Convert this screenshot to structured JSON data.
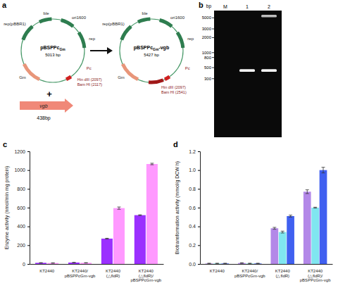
{
  "plasmid_panel": {
    "letter": "a",
    "plasmids": [
      {
        "name": "pBSPPc",
        "sub": "Gm",
        "suffix": "",
        "size": "5013 bp",
        "labels": [
          "ble",
          "ori1600",
          "rep",
          "rep(pBBR1)",
          "Gm",
          "Pc",
          "Hin dIII (2097)",
          "Bam HI (2117)"
        ]
      },
      {
        "name": "pBSPPc",
        "sub": "Gm",
        "suffix": "-vgb",
        "size": "5427 bp",
        "labels": [
          "ble",
          "ori1600",
          "rep",
          "rep(pBBR1)",
          "Gm",
          "Pc",
          "Hin dIII (2097)",
          "Bam HI (2541)"
        ]
      }
    ],
    "plus": "+",
    "insert": {
      "name": "vgb",
      "size": "438bp"
    }
  },
  "gel_panel": {
    "letter": "b",
    "unit": "bp",
    "lanes": [
      "M",
      "1",
      "2"
    ],
    "ladder": [
      5000,
      3000,
      2000,
      1000,
      800,
      500,
      300
    ],
    "ylim": [
      20,
      7000
    ],
    "bands": [
      [],
      [
        438
      ],
      [
        438,
        5427
      ]
    ]
  },
  "chart_data": [
    {
      "type": "bar",
      "letter": "c",
      "y_label": "Enzyme activity (nmol/min mg protein)",
      "categories": [
        "KT2440",
        "KT2440/pBSPPcGm-vgb",
        "KT2440(△fldR)",
        "KT2440(△fldR)/pBSPPcGm-vgb"
      ],
      "series": [
        {
          "color": "#9b30ff",
          "values": [
            12,
            15,
            270,
            520
          ],
          "errors": [
            2,
            2,
            4,
            4
          ]
        },
        {
          "color": "#ff99ff",
          "values": [
            10,
            12,
            595,
            1065
          ],
          "errors": [
            2,
            2,
            12,
            8
          ]
        }
      ],
      "ylim": [
        0,
        1200
      ],
      "yticks": [
        0,
        200,
        400,
        600,
        800,
        1000,
        1200
      ],
      "grid": false
    },
    {
      "type": "bar",
      "letter": "d",
      "y_label": "Biotransformation activity (mmol/g DCW h)",
      "categories": [
        "KT2440",
        "KT2440/pBSPPcGm-vgb",
        "KT2440(△fldR)",
        "KT2440(△fldR)/pBSPPcGm-vgb"
      ],
      "series": [
        {
          "color": "#b388e8",
          "values": [
            0.005,
            0.01,
            0.38,
            0.77
          ],
          "errors": [
            0.003,
            0.003,
            0.01,
            0.02
          ]
        },
        {
          "color": "#80e6f0",
          "values": [
            0.005,
            0.005,
            0.34,
            0.6
          ],
          "errors": [
            0.003,
            0.003,
            0.01,
            0.005
          ]
        },
        {
          "color": "#4060f0",
          "values": [
            0.005,
            0.005,
            0.51,
            1.0
          ],
          "errors": [
            0.003,
            0.003,
            0.01,
            0.03
          ]
        }
      ],
      "ylim": [
        0,
        1.2
      ],
      "yticks": [
        {
          "value": 0,
          "label": "0.0"
        },
        {
          "value": 0.2,
          "label": "0.2"
        },
        {
          "value": 0.4,
          "label": "0.4"
        },
        {
          "value": 0.6,
          "label": "0.6"
        },
        {
          "value": 0.8,
          "label": "0.8"
        },
        {
          "value": 1.0,
          "label": "1.0"
        },
        {
          "value": 1.2,
          "label": "1.2"
        }
      ],
      "grid": false
    }
  ]
}
